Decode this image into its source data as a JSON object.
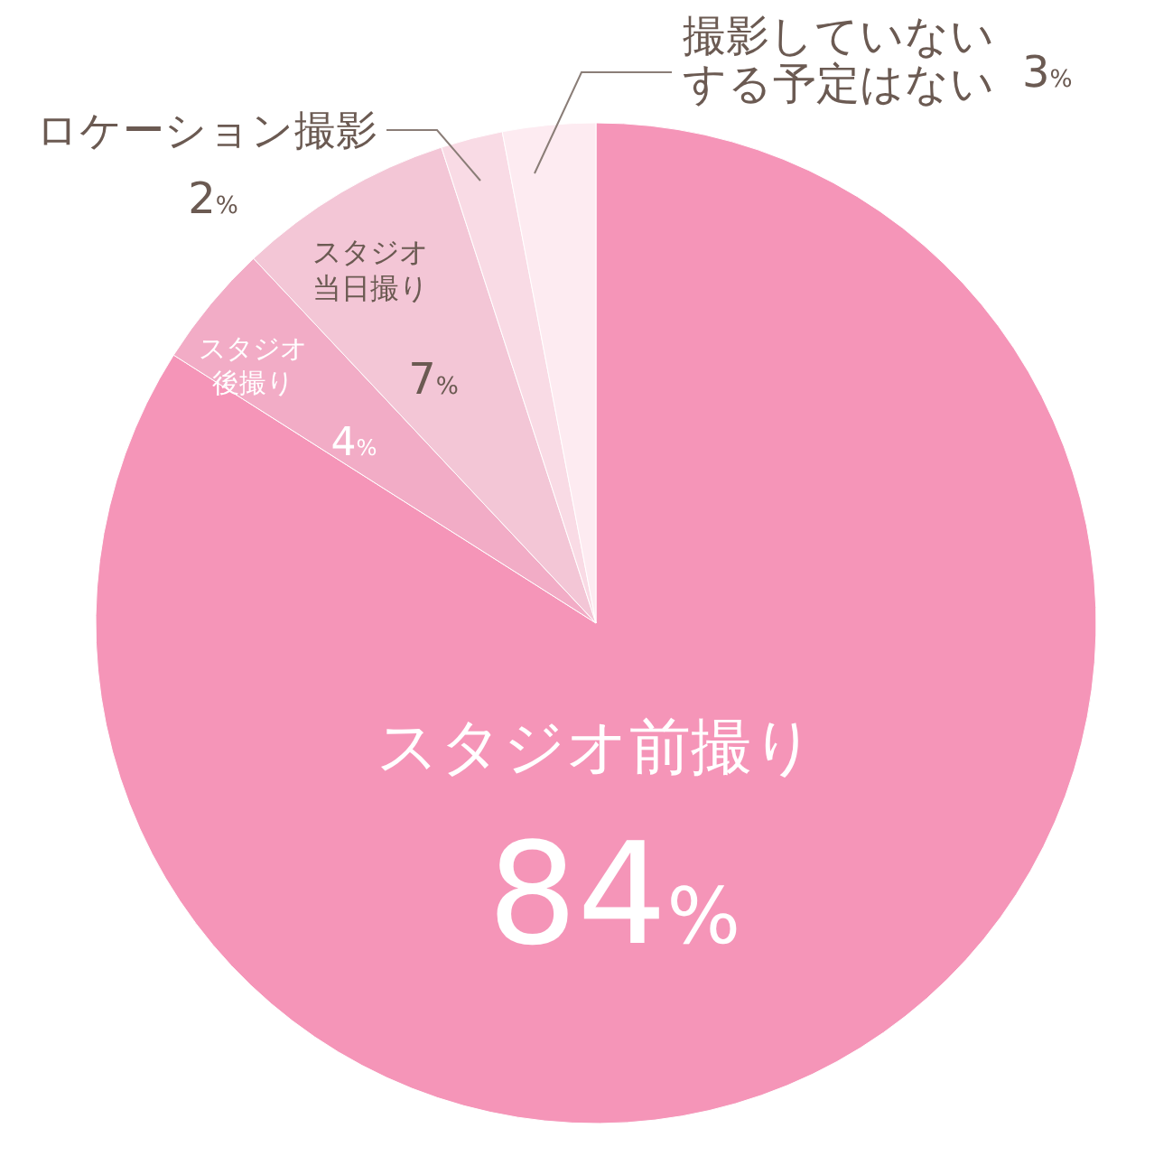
{
  "chart_data": {
    "type": "pie",
    "categories": [
      "スタジオ前撮り",
      "スタジオ後撮り",
      "スタジオ当日撮り",
      "ロケーション撮影",
      "撮影していないする予定はない"
    ],
    "values": [
      84,
      4,
      7,
      2,
      3
    ],
    "value_labels": [
      "84%",
      "4%",
      "7%",
      "2%",
      "3%"
    ],
    "colors": [
      "#f595b8",
      "#f2acc6",
      "#f3c6d6",
      "#f9dbe5",
      "#fdebf1"
    ]
  }
}
